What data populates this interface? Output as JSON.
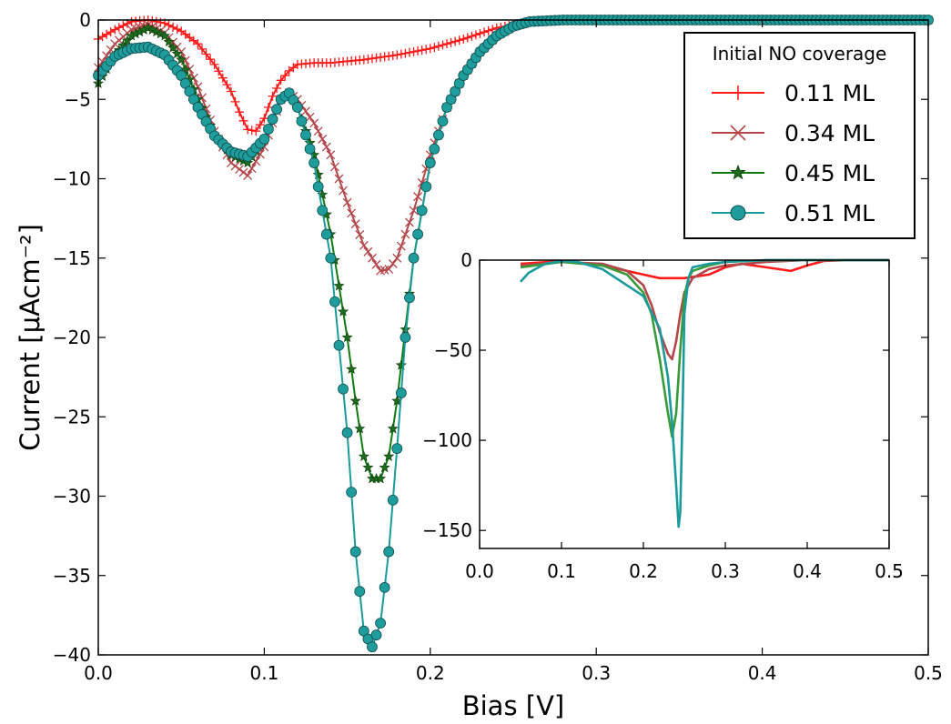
{
  "chart_data": [
    {
      "type": "line",
      "xlabel": "Bias [V]",
      "ylabel": "Current [μAcm⁻²]",
      "xlim": [
        0.0,
        0.5
      ],
      "ylim": [
        -40,
        0
      ],
      "xticks": [
        0.0,
        0.1,
        0.2,
        0.3,
        0.4,
        0.5
      ],
      "xtick_labels": [
        "0.0",
        "0.1",
        "0.2",
        "0.3",
        "0.4",
        "0.5"
      ],
      "yticks": [
        0,
        -5,
        -10,
        -15,
        -20,
        -25,
        -30,
        -35,
        -40
      ],
      "ytick_labels": [
        "0",
        "−5",
        "−10",
        "−15",
        "−20",
        "−25",
        "−30",
        "−35",
        "−40"
      ],
      "grid": false,
      "legend": {
        "title": "Initial NO coverage",
        "placement": "top-right"
      },
      "series": [
        {
          "name": "0.11 ML",
          "color": "#ff1a1a",
          "marker": "plus",
          "x": [
            0.0,
            0.01,
            0.02,
            0.03,
            0.04,
            0.05,
            0.06,
            0.07,
            0.08,
            0.085,
            0.09,
            0.095,
            0.1,
            0.105,
            0.11,
            0.115,
            0.12,
            0.13,
            0.14,
            0.15,
            0.16,
            0.18,
            0.2,
            0.22,
            0.24,
            0.26,
            0.28,
            0.3,
            0.35,
            0.4,
            0.45,
            0.5
          ],
          "values": [
            -1.2,
            -0.6,
            -0.1,
            0.0,
            -0.2,
            -0.7,
            -1.5,
            -2.8,
            -4.5,
            -5.8,
            -6.9,
            -7.0,
            -6.2,
            -4.8,
            -3.8,
            -3.2,
            -2.8,
            -2.7,
            -2.7,
            -2.6,
            -2.5,
            -2.2,
            -1.8,
            -1.2,
            -0.5,
            -0.1,
            0.0,
            0.0,
            0.0,
            0.0,
            0.0,
            0.0
          ]
        },
        {
          "name": "0.34 ML",
          "color": "#b5474b",
          "marker": "x",
          "x": [
            0.0,
            0.01,
            0.02,
            0.03,
            0.04,
            0.05,
            0.06,
            0.07,
            0.08,
            0.09,
            0.1,
            0.11,
            0.115,
            0.12,
            0.13,
            0.14,
            0.15,
            0.16,
            0.17,
            0.175,
            0.18,
            0.19,
            0.2,
            0.21,
            0.22,
            0.23,
            0.24,
            0.25,
            0.26,
            0.28,
            0.3,
            0.35,
            0.4,
            0.45,
            0.5
          ],
          "values": [
            -3.0,
            -1.5,
            -0.6,
            -0.3,
            -0.8,
            -2.0,
            -4.2,
            -7.0,
            -9.0,
            -9.8,
            -8.0,
            -5.0,
            -4.6,
            -5.0,
            -6.5,
            -8.5,
            -11.5,
            -14.2,
            -15.8,
            -15.7,
            -15.0,
            -12.0,
            -8.5,
            -5.5,
            -3.5,
            -2.0,
            -1.0,
            -0.4,
            -0.1,
            0.0,
            0.0,
            0.0,
            0.0,
            0.0,
            0.0
          ]
        },
        {
          "name": "0.45 ML",
          "color": "#0f7a0f",
          "marker": "star",
          "x": [
            0.0,
            0.01,
            0.02,
            0.03,
            0.04,
            0.05,
            0.06,
            0.07,
            0.08,
            0.09,
            0.1,
            0.11,
            0.115,
            0.12,
            0.13,
            0.14,
            0.15,
            0.155,
            0.16,
            0.165,
            0.17,
            0.175,
            0.18,
            0.185,
            0.19,
            0.2,
            0.21,
            0.22,
            0.23,
            0.24,
            0.25,
            0.26,
            0.28,
            0.3,
            0.35,
            0.4,
            0.45,
            0.5
          ],
          "values": [
            -4.0,
            -2.2,
            -1.0,
            -0.5,
            -1.0,
            -2.5,
            -5.0,
            -7.2,
            -8.5,
            -9.0,
            -7.5,
            -5.0,
            -4.6,
            -5.5,
            -8.5,
            -13.5,
            -20.0,
            -24.0,
            -27.5,
            -28.9,
            -28.9,
            -27.5,
            -24.0,
            -19.5,
            -15.0,
            -9.0,
            -5.5,
            -3.5,
            -2.0,
            -1.0,
            -0.4,
            -0.1,
            0.0,
            0.0,
            0.0,
            0.0,
            0.0,
            0.0
          ]
        },
        {
          "name": "0.51 ML",
          "color": "#1a9a9a",
          "marker": "circle",
          "x": [
            0.0,
            0.01,
            0.02,
            0.03,
            0.04,
            0.05,
            0.06,
            0.07,
            0.08,
            0.09,
            0.1,
            0.11,
            0.115,
            0.12,
            0.13,
            0.14,
            0.15,
            0.155,
            0.16,
            0.165,
            0.17,
            0.175,
            0.18,
            0.185,
            0.19,
            0.2,
            0.21,
            0.22,
            0.23,
            0.24,
            0.25,
            0.26,
            0.28,
            0.3,
            0.35,
            0.4,
            0.45,
            0.5
          ],
          "values": [
            -3.5,
            -2.3,
            -1.8,
            -1.7,
            -2.2,
            -3.5,
            -5.5,
            -7.3,
            -8.3,
            -8.6,
            -7.5,
            -5.0,
            -4.6,
            -5.5,
            -9.0,
            -15.0,
            -26.0,
            -33.5,
            -38.5,
            -39.5,
            -38.0,
            -33.5,
            -27.0,
            -20.0,
            -15.0,
            -9.0,
            -5.5,
            -3.5,
            -2.0,
            -1.0,
            -0.4,
            -0.1,
            0.0,
            0.0,
            0.0,
            0.0,
            0.0,
            0.0
          ]
        }
      ]
    },
    {
      "type": "line",
      "placement": "inset-lower-right",
      "xlim": [
        0.0,
        0.5
      ],
      "ylim": [
        -160,
        0
      ],
      "xticks": [
        0.0,
        0.1,
        0.2,
        0.3,
        0.4,
        0.5
      ],
      "xtick_labels": [
        "0.0",
        "0.1",
        "0.2",
        "0.3",
        "0.4",
        "0.5"
      ],
      "yticks": [
        0,
        -50,
        -100,
        -150
      ],
      "ytick_labels": [
        "0",
        "−50",
        "−100",
        "−150"
      ],
      "grid": false,
      "series": [
        {
          "color": "#ff1a1a",
          "x": [
            0.05,
            0.1,
            0.15,
            0.2,
            0.22,
            0.25,
            0.28,
            0.3,
            0.32,
            0.35,
            0.38,
            0.4,
            0.42,
            0.45,
            0.5
          ],
          "values": [
            -2,
            -0.5,
            -3,
            -8,
            -10,
            -10,
            -8,
            -4,
            -2,
            -4,
            -6,
            -3,
            -0.5,
            0,
            0
          ]
        },
        {
          "color": "#b5474b",
          "x": [
            0.05,
            0.1,
            0.15,
            0.18,
            0.2,
            0.21,
            0.22,
            0.23,
            0.235,
            0.24,
            0.245,
            0.25,
            0.26,
            0.28,
            0.3,
            0.35,
            0.4,
            0.45,
            0.5
          ],
          "values": [
            -3,
            -1,
            -2,
            -6,
            -14,
            -25,
            -40,
            -52,
            -55,
            -45,
            -30,
            -18,
            -10,
            -5,
            -3,
            -1,
            0,
            0,
            0
          ]
        },
        {
          "color": "#3a9a3a",
          "x": [
            0.05,
            0.1,
            0.15,
            0.18,
            0.2,
            0.21,
            0.22,
            0.23,
            0.235,
            0.24,
            0.245,
            0.25,
            0.255,
            0.26,
            0.28,
            0.3,
            0.35,
            0.4,
            0.45,
            0.5
          ],
          "values": [
            -4,
            -1,
            -3,
            -8,
            -18,
            -30,
            -55,
            -85,
            -98,
            -85,
            -50,
            -20,
            -10,
            -6,
            -3,
            -1,
            0,
            0,
            0,
            0
          ]
        },
        {
          "color": "#1a9a9a",
          "x": [
            0.05,
            0.06,
            0.08,
            0.1,
            0.12,
            0.15,
            0.18,
            0.2,
            0.22,
            0.23,
            0.235,
            0.24,
            0.243,
            0.245,
            0.248,
            0.25,
            0.255,
            0.26,
            0.28,
            0.3,
            0.35,
            0.4,
            0.45,
            0.5
          ],
          "values": [
            -12,
            -7,
            -2,
            -0.5,
            -1,
            -5,
            -14,
            -20,
            -38,
            -65,
            -90,
            -125,
            -148,
            -140,
            -80,
            -30,
            -10,
            -4,
            -2,
            -1,
            0,
            0,
            0,
            0
          ]
        }
      ]
    }
  ]
}
